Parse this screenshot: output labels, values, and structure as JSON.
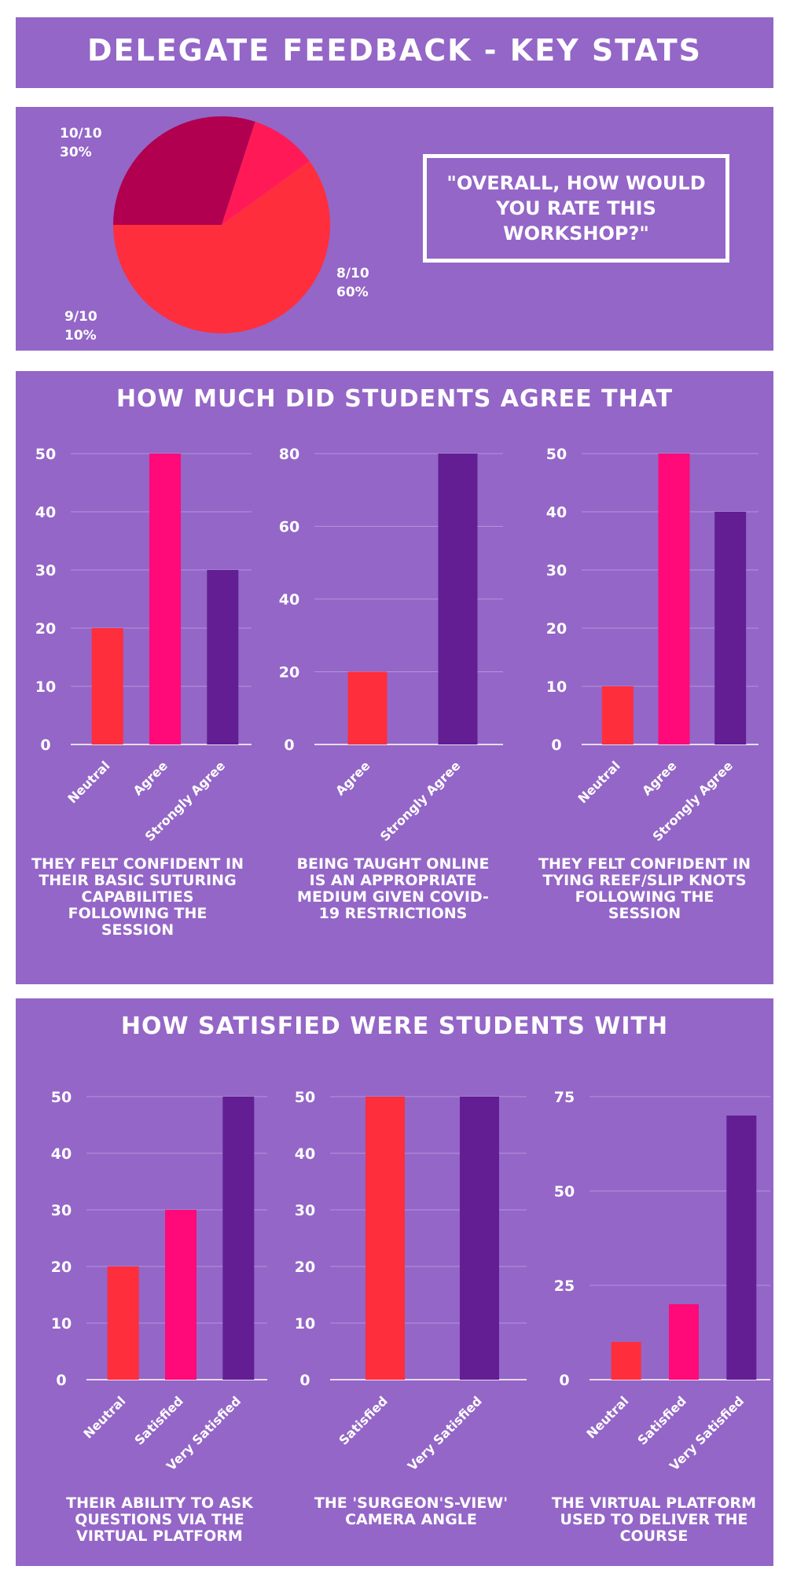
{
  "header": {
    "title": "DELEGATE FEEDBACK - KEY STATS"
  },
  "overall": {
    "question": "\"OVERALL, HOW WOULD YOU RATE THIS WORKSHOP?\"",
    "slices": [
      {
        "label": "10/10",
        "percent_text": "30%",
        "value": 30,
        "color": "#b0004f"
      },
      {
        "label": "9/10",
        "percent_text": "10%",
        "value": 10,
        "color": "#ff1a57"
      },
      {
        "label": "8/10",
        "percent_text": "60%",
        "value": 60,
        "color": "#ff2e3c"
      }
    ]
  },
  "agree_section": {
    "heading": "HOW MUCH DID STUDENTS AGREE THAT"
  },
  "satisfied_section": {
    "heading": "HOW SATISFIED WERE STUDENTS WITH"
  },
  "colors": {
    "panel": "#9466c7",
    "neutral": "#ff2e3c",
    "middle": "#ff0a78",
    "strong": "#621e92",
    "text": "#ffffff"
  },
  "chart_data": [
    {
      "type": "pie",
      "title": "\"OVERALL, HOW WOULD YOU RATE THIS WORKSHOP?\"",
      "categories": [
        "10/10",
        "9/10",
        "8/10"
      ],
      "values": [
        30,
        10,
        60
      ]
    },
    {
      "type": "bar",
      "categories": [
        "Neutral",
        "Agree",
        "Strongly Agree"
      ],
      "values": [
        20,
        50,
        30
      ],
      "colors": [
        "#ff2e3c",
        "#ff0a78",
        "#621e92"
      ],
      "ylim": [
        0,
        50
      ],
      "ticks": [
        0,
        10,
        20,
        30,
        40,
        50
      ],
      "caption": "THEY FELT CONFIDENT IN THEIR BASIC SUTURING CAPABILITIES FOLLOWING THE SESSION"
    },
    {
      "type": "bar",
      "categories": [
        "Agree",
        "Strongly Agree"
      ],
      "values": [
        20,
        80
      ],
      "colors": [
        "#ff2e3c",
        "#621e92"
      ],
      "ylim": [
        0,
        80
      ],
      "ticks": [
        0,
        20,
        40,
        60,
        80
      ],
      "caption": "BEING TAUGHT ONLINE IS AN APPROPRIATE MEDIUM GIVEN COVID-19 RESTRICTIONS"
    },
    {
      "type": "bar",
      "categories": [
        "Neutral",
        "Agree",
        "Strongly Agree"
      ],
      "values": [
        10,
        50,
        40
      ],
      "colors": [
        "#ff2e3c",
        "#ff0a78",
        "#621e92"
      ],
      "ylim": [
        0,
        50
      ],
      "ticks": [
        0,
        10,
        20,
        30,
        40,
        50
      ],
      "caption": "THEY FELT CONFIDENT IN TYING REEF/SLIP KNOTS FOLLOWING THE SESSION"
    },
    {
      "type": "bar",
      "categories": [
        "Neutral",
        "Satisfied",
        "Very Satisfied"
      ],
      "values": [
        20,
        30,
        50
      ],
      "colors": [
        "#ff2e3c",
        "#ff0a78",
        "#621e92"
      ],
      "ylim": [
        0,
        50
      ],
      "ticks": [
        0,
        10,
        20,
        30,
        40,
        50
      ],
      "caption": "THEIR ABILITY TO ASK QUESTIONS VIA THE VIRTUAL PLATFORM"
    },
    {
      "type": "bar",
      "categories": [
        "Satisfied",
        "Very Satisfied"
      ],
      "values": [
        50,
        50
      ],
      "colors": [
        "#ff2e3c",
        "#621e92"
      ],
      "ylim": [
        0,
        50
      ],
      "ticks": [
        0,
        10,
        20,
        30,
        40,
        50
      ],
      "caption": "THE 'SURGEON'S-VIEW' CAMERA ANGLE"
    },
    {
      "type": "bar",
      "categories": [
        "Neutral",
        "Satisfied",
        "Very Satisfied"
      ],
      "values": [
        10,
        20,
        70
      ],
      "colors": [
        "#ff2e3c",
        "#ff0a78",
        "#621e92"
      ],
      "ylim": [
        0,
        75
      ],
      "ticks": [
        0,
        25,
        50,
        75
      ],
      "caption": "THE VIRTUAL PLATFORM USED TO DELIVER THE COURSE"
    }
  ]
}
